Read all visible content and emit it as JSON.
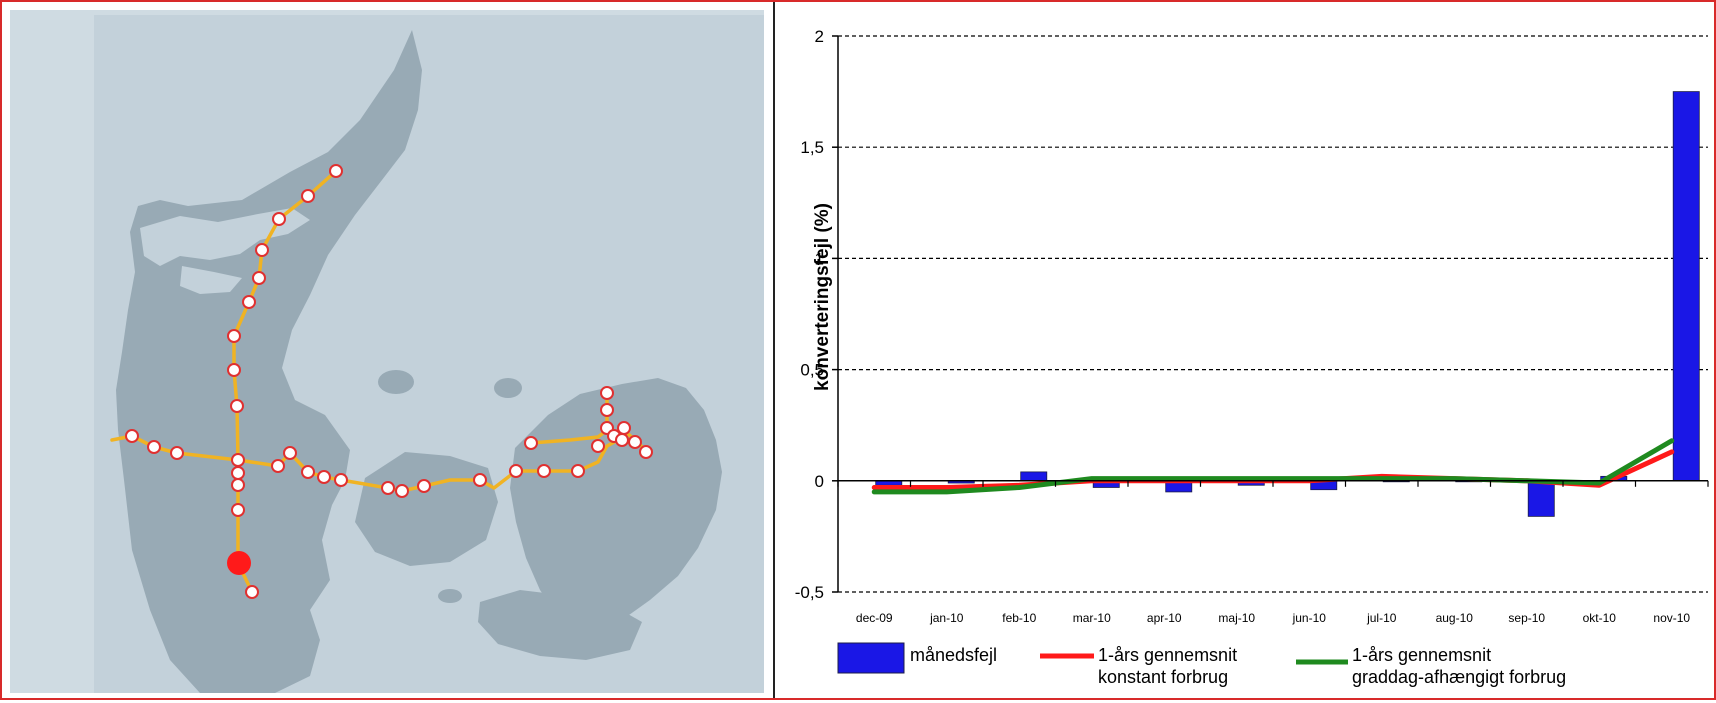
{
  "map": {
    "colors": {
      "sea": "#cfdbe2",
      "land": "#98aab5",
      "pipeline": "#f0b323",
      "station_fill": "#ffffff",
      "station_stroke": "#e03030",
      "highlight": "#ff1a1a"
    }
  },
  "chart_data": {
    "type": "bar",
    "categories": [
      "dec-09",
      "jan-10",
      "feb-10",
      "mar-10",
      "apr-10",
      "maj-10",
      "jun-10",
      "jul-10",
      "aug-10",
      "sep-10",
      "okt-10",
      "nov-10"
    ],
    "ylabel": "konverteringsfejl  (%)",
    "xlabel": "",
    "ylim": [
      -0.5,
      2
    ],
    "yticks": [
      -0.5,
      0,
      0.5,
      1,
      1.5,
      2
    ],
    "ytick_labels": [
      "-0,5",
      "0",
      "0,5",
      "1",
      "1,5",
      "2"
    ],
    "grid": "horizontal dashed",
    "legend_position": "bottom",
    "series": [
      {
        "name": "månedsfejl",
        "kind": "bar",
        "color": "#1a17e6",
        "values": [
          -0.02,
          -0.01,
          0.04,
          -0.03,
          -0.05,
          -0.02,
          -0.04,
          0.0,
          0.0,
          -0.16,
          0.02,
          1.75
        ]
      },
      {
        "name": "1-års gennemsnit konstant forbrug",
        "kind": "line",
        "color": "#ff1a1a",
        "values": [
          -0.03,
          -0.03,
          -0.02,
          0.0,
          0.0,
          0.0,
          0.0,
          0.02,
          0.01,
          0.0,
          -0.02,
          0.13
        ]
      },
      {
        "name": "1-års gennemsnit graddag-afhængigt forbrug",
        "kind": "line",
        "color": "#1f8a1f",
        "values": [
          -0.05,
          -0.05,
          -0.03,
          0.01,
          0.01,
          0.01,
          0.01,
          0.01,
          0.01,
          0.0,
          -0.01,
          0.18
        ]
      }
    ],
    "legend_lines": [
      [
        "månedsfejl"
      ],
      [
        "1-års gennemsnit",
        "konstant forbrug"
      ],
      [
        "1-års gennemsnit",
        "graddag-afhængigt forbrug"
      ]
    ]
  }
}
